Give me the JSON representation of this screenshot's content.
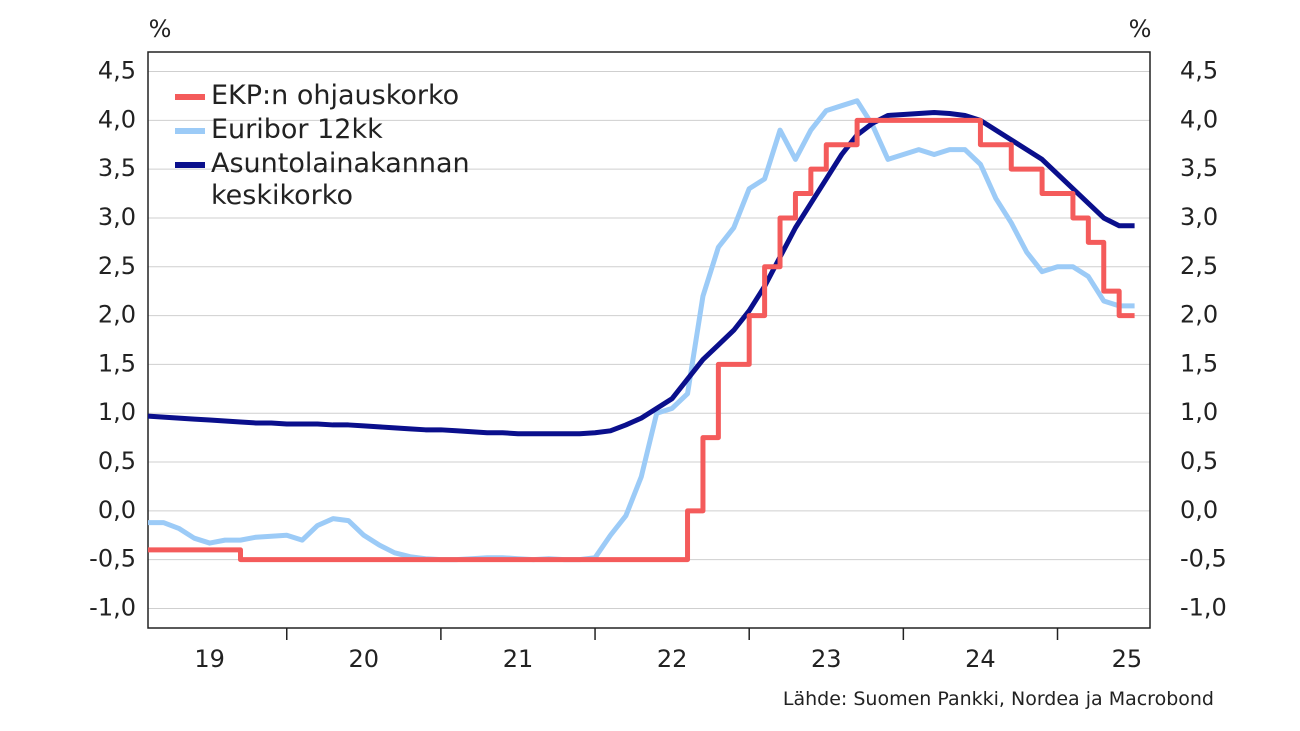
{
  "chart_data": {
    "type": "line",
    "y_unit": "%",
    "source": "Lähde: Suomen Pankki, Nordea ja Macrobond",
    "xlim": [
      19.1,
      25.6
    ],
    "ylim": [
      -1.2,
      4.7
    ],
    "grid": true,
    "legend": "top-left",
    "xticks": [
      {
        "value": 19.5,
        "label": "19"
      },
      {
        "value": 20.5,
        "label": "20"
      },
      {
        "value": 21.5,
        "label": "21"
      },
      {
        "value": 22.5,
        "label": "22"
      },
      {
        "value": 23.5,
        "label": "23"
      },
      {
        "value": 24.5,
        "label": "24"
      },
      {
        "value": 25.45,
        "label": "25"
      }
    ],
    "xtick_marks": [
      20,
      21,
      22,
      23,
      24,
      25
    ],
    "yticks": [
      {
        "value": -1.0,
        "label": "-1,0"
      },
      {
        "value": -0.5,
        "label": "-0,5"
      },
      {
        "value": 0.0,
        "label": "0,0"
      },
      {
        "value": 0.5,
        "label": "0,5"
      },
      {
        "value": 1.0,
        "label": "1,0"
      },
      {
        "value": 1.5,
        "label": "1,5"
      },
      {
        "value": 2.0,
        "label": "2,0"
      },
      {
        "value": 2.5,
        "label": "2,5"
      },
      {
        "value": 3.0,
        "label": "3,0"
      },
      {
        "value": 3.5,
        "label": "3,5"
      },
      {
        "value": 4.0,
        "label": "4,0"
      },
      {
        "value": 4.5,
        "label": "4,5"
      }
    ],
    "x": [
      19.1,
      19.2,
      19.3,
      19.4,
      19.5,
      19.6,
      19.7,
      19.8,
      19.9,
      20.0,
      20.1,
      20.2,
      20.3,
      20.4,
      20.5,
      20.6,
      20.7,
      20.8,
      20.9,
      21.0,
      21.1,
      21.2,
      21.3,
      21.4,
      21.5,
      21.6,
      21.7,
      21.8,
      21.9,
      22.0,
      22.1,
      22.2,
      22.3,
      22.4,
      22.5,
      22.6,
      22.7,
      22.8,
      22.9,
      23.0,
      23.1,
      23.2,
      23.3,
      23.4,
      23.5,
      23.6,
      23.7,
      23.8,
      23.9,
      24.0,
      24.1,
      24.2,
      24.3,
      24.4,
      24.5,
      24.6,
      24.7,
      24.8,
      24.9,
      25.0,
      25.1,
      25.2,
      25.3,
      25.4,
      25.5
    ],
    "series": [
      {
        "name": "EKP:n ohjauskorko",
        "color": "#f45b5b",
        "step": true,
        "values": [
          -0.4,
          -0.4,
          -0.4,
          -0.4,
          -0.4,
          -0.4,
          -0.5,
          -0.5,
          -0.5,
          -0.5,
          -0.5,
          -0.5,
          -0.5,
          -0.5,
          -0.5,
          -0.5,
          -0.5,
          -0.5,
          -0.5,
          -0.5,
          -0.5,
          -0.5,
          -0.5,
          -0.5,
          -0.5,
          -0.5,
          -0.5,
          -0.5,
          -0.5,
          -0.5,
          -0.5,
          -0.5,
          -0.5,
          -0.5,
          -0.5,
          0,
          0.75,
          1.5,
          1.5,
          2.0,
          2.5,
          3.0,
          3.25,
          3.5,
          3.75,
          3.75,
          4.0,
          4.0,
          4.0,
          4.0,
          4.0,
          4.0,
          4.0,
          4.0,
          3.75,
          3.75,
          3.5,
          3.5,
          3.25,
          3.25,
          3.0,
          2.75,
          2.25,
          2.0,
          2.0
        ]
      },
      {
        "name": "Euribor 12kk",
        "color": "#9ccbf7",
        "values": [
          -0.12,
          -0.12,
          -0.18,
          -0.28,
          -0.33,
          -0.3,
          -0.3,
          -0.27,
          -0.26,
          -0.25,
          -0.3,
          -0.15,
          -0.08,
          -0.1,
          -0.25,
          -0.35,
          -0.43,
          -0.47,
          -0.49,
          -0.5,
          -0.5,
          -0.49,
          -0.48,
          -0.48,
          -0.49,
          -0.5,
          -0.49,
          -0.5,
          -0.5,
          -0.48,
          -0.25,
          -0.05,
          0.35,
          1.0,
          1.05,
          1.2,
          2.2,
          2.7,
          2.9,
          3.3,
          3.4,
          3.9,
          3.6,
          3.9,
          4.1,
          4.15,
          4.2,
          3.95,
          3.6,
          3.65,
          3.7,
          3.65,
          3.7,
          3.7,
          3.55,
          3.2,
          2.95,
          2.65,
          2.45,
          2.5,
          2.5,
          2.4,
          2.15,
          2.1,
          2.1
        ]
      },
      {
        "name": "Asuntolainakannan keskikorko",
        "color": "#0a0f8c",
        "values": [
          0.97,
          0.96,
          0.95,
          0.94,
          0.93,
          0.92,
          0.91,
          0.9,
          0.9,
          0.89,
          0.89,
          0.89,
          0.88,
          0.88,
          0.87,
          0.86,
          0.85,
          0.84,
          0.83,
          0.83,
          0.82,
          0.81,
          0.8,
          0.8,
          0.79,
          0.79,
          0.79,
          0.79,
          0.79,
          0.8,
          0.82,
          0.88,
          0.95,
          1.05,
          1.15,
          1.35,
          1.55,
          1.7,
          1.85,
          2.05,
          2.3,
          2.6,
          2.9,
          3.15,
          3.4,
          3.65,
          3.85,
          3.97,
          4.05,
          4.06,
          4.07,
          4.08,
          4.07,
          4.05,
          4.0,
          3.9,
          3.8,
          3.7,
          3.6,
          3.45,
          3.3,
          3.15,
          3.0,
          2.92,
          2.92
        ]
      }
    ]
  }
}
